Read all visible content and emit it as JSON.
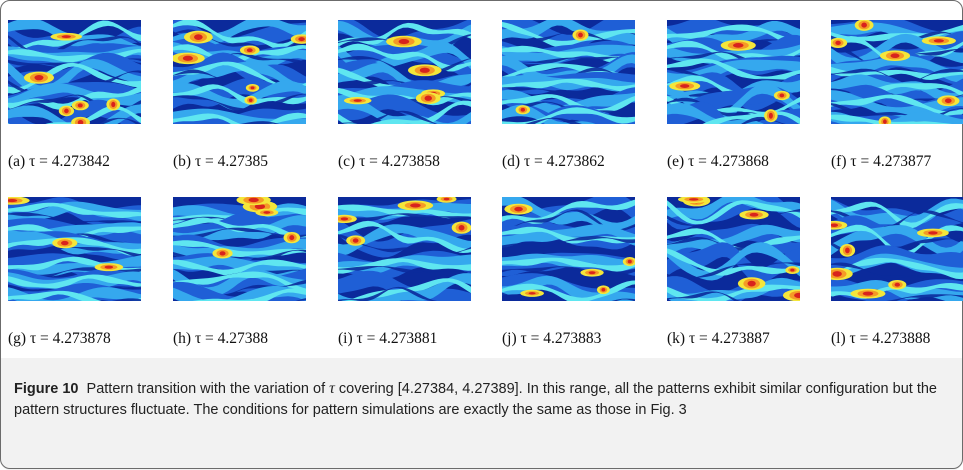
{
  "panels": [
    {
      "label": "(a) τ = 4.273842",
      "seed": 1
    },
    {
      "label": "(b) τ = 4.27385",
      "seed": 2
    },
    {
      "label": "(c) τ = 4.273858",
      "seed": 3
    },
    {
      "label": "(d) τ = 4.273862",
      "seed": 4
    },
    {
      "label": "(e) τ = 4.273868",
      "seed": 5
    },
    {
      "label": "(f) τ = 4.273877",
      "seed": 6
    },
    {
      "label": "(g) τ = 4.273878",
      "seed": 7
    },
    {
      "label": "(h) τ = 4.27388",
      "seed": 8
    },
    {
      "label": "(i) τ = 4.273881",
      "seed": 9
    },
    {
      "label": "(j) τ = 4.273883",
      "seed": 10
    },
    {
      "label": "(k) τ = 4.273887",
      "seed": 11
    },
    {
      "label": "(l) τ = 4.273888",
      "seed": 12
    }
  ],
  "caption": {
    "figure": "Figure 10",
    "text_before": "Pattern transition with the variation of ",
    "symbol": "τ",
    "text_after": " covering [4.27384, 4.27389]. In this range, all the patterns exhibit similar configuration but the pattern structures fluctuate. The conditions for pattern simulations are exactly the same as those in Fig. 3"
  },
  "colors": {
    "deep": "#0b2a9b",
    "blue": "#1f5fd6",
    "light": "#35a8ee",
    "cyan": "#5fe6f0",
    "yellow": "#f4e63a",
    "orange": "#f59a26",
    "red": "#d8231d",
    "border": "#6b6b6b",
    "caption_band": "#f2f2f2"
  }
}
